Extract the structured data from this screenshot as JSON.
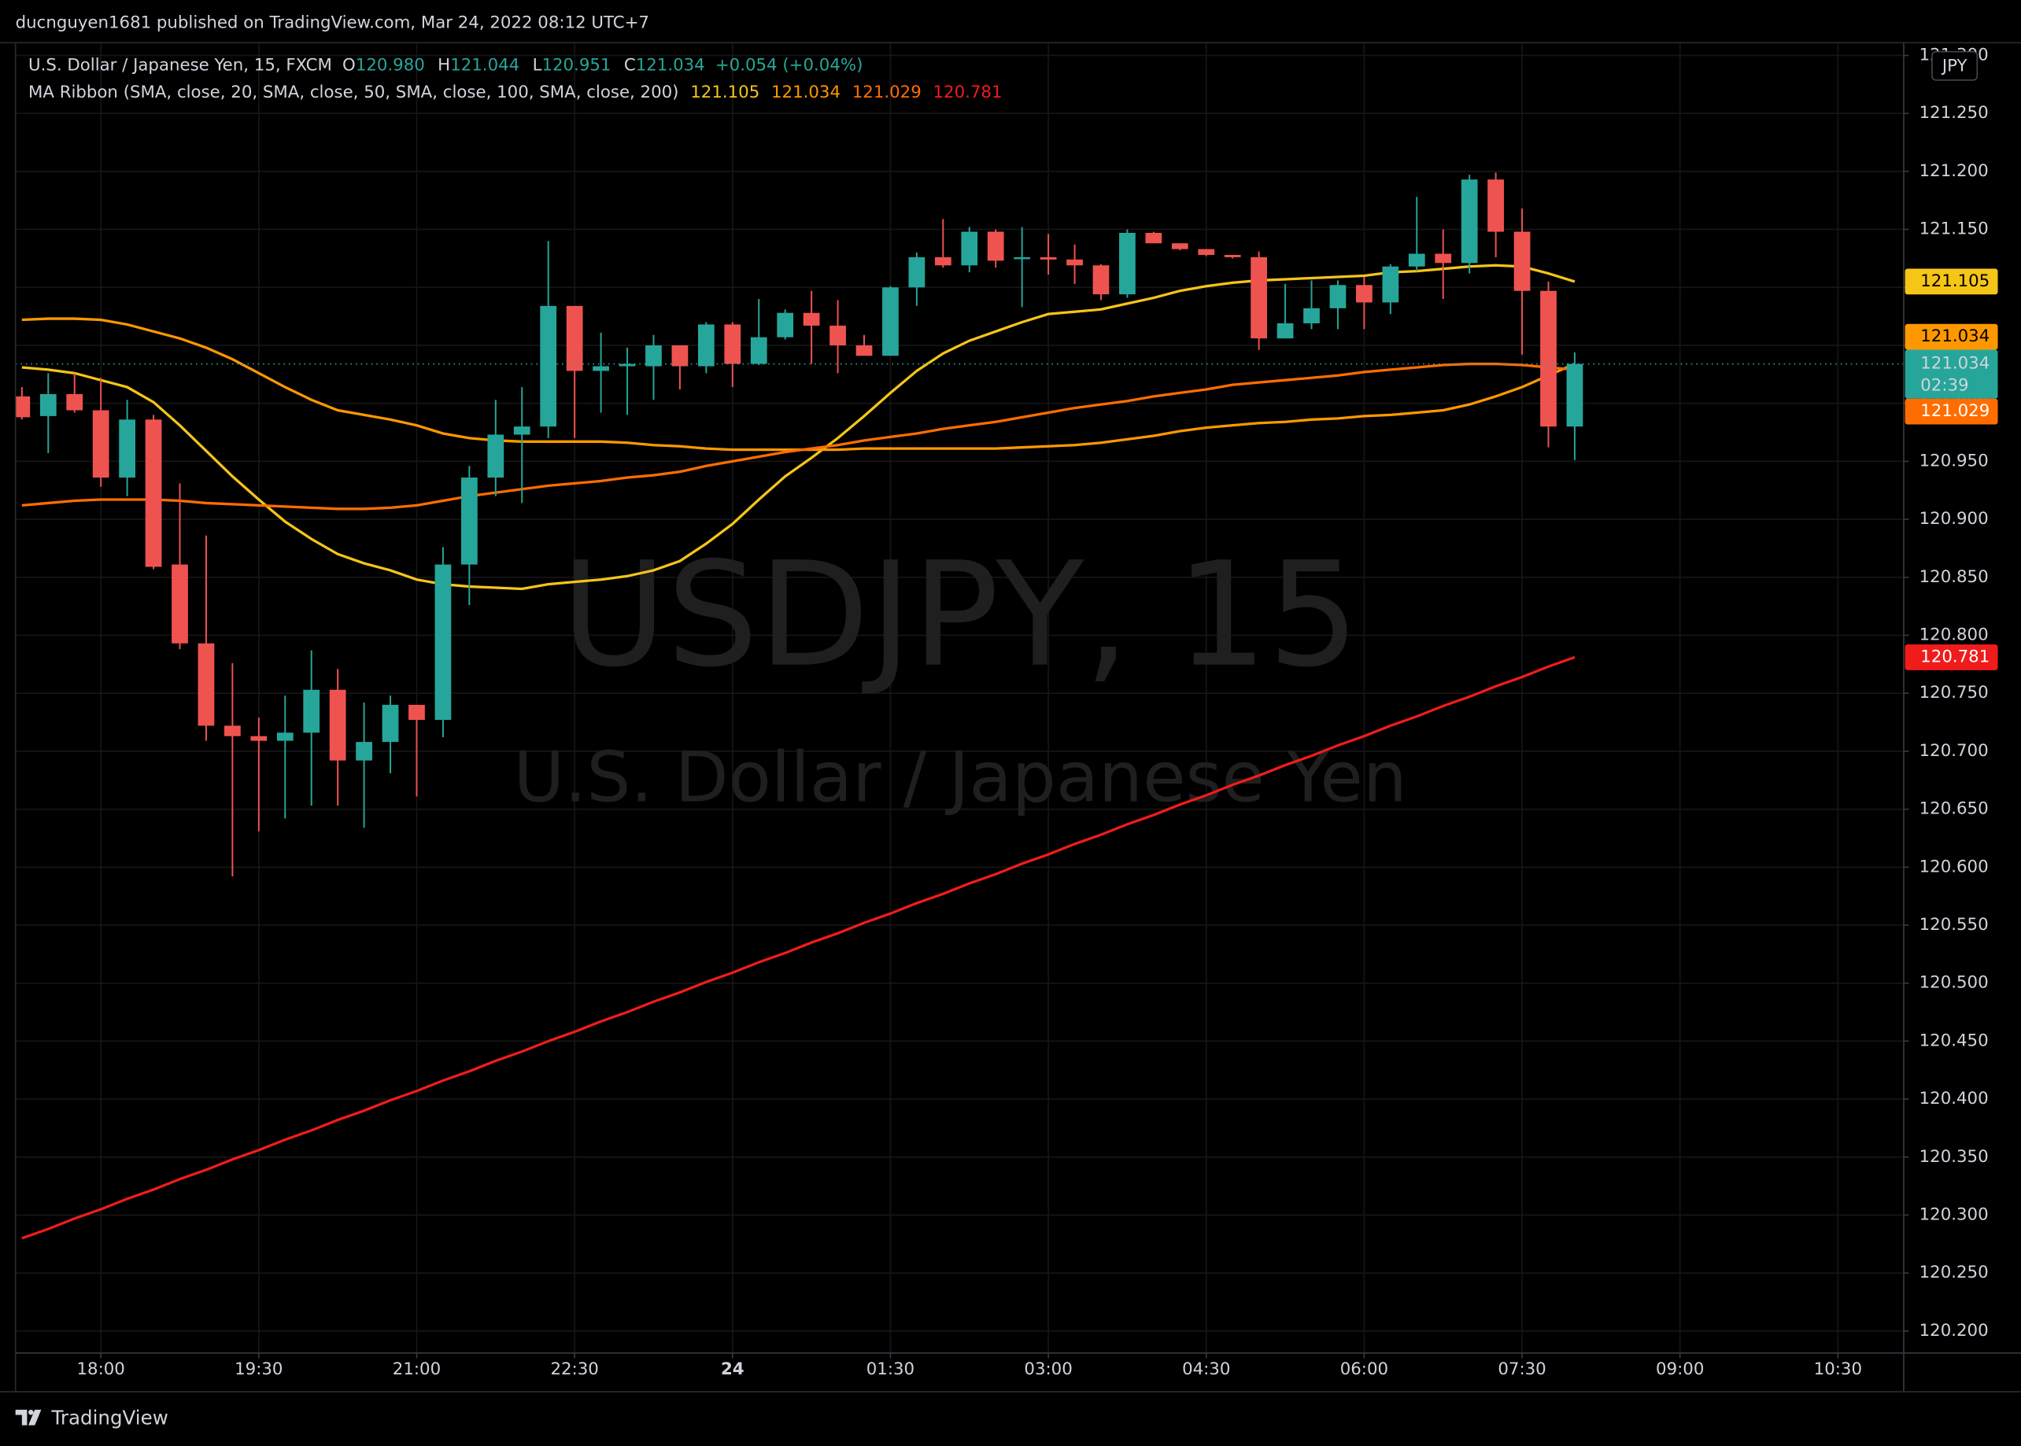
{
  "header": {
    "publisher": "ducnguyen1681 published on TradingView.com, Mar 24, 2022 08:12 UTC+7"
  },
  "footer": {
    "brand": "TradingView"
  },
  "chart_data": {
    "type": "candlestick",
    "title": "U.S. Dollar / Japanese Yen, 15, FXCM",
    "ohlc_legend": [
      {
        "key": "O",
        "value": "120.980"
      },
      {
        "key": "H",
        "value": "121.044"
      },
      {
        "key": "L",
        "value": "120.951"
      },
      {
        "key": "C",
        "value": "121.034"
      }
    ],
    "change": "+0.054 (+0.04%)",
    "indicator_title": "MA Ribbon (SMA, close, 20, SMA, close, 50, SMA, close, 100, SMA, close, 200)",
    "watermark": {
      "title": "USDJPY, 15",
      "subtitle": "U.S. Dollar / Japanese Yen"
    },
    "currency": "JPY",
    "countdown": "02:39",
    "up_color": "#26a69a",
    "down_color": "#ef5350",
    "grid": true,
    "x": [
      0,
      1,
      2,
      3,
      4,
      5,
      6,
      7,
      8,
      9,
      10,
      11,
      12,
      13,
      14,
      15,
      16,
      17,
      18,
      19,
      20,
      21,
      22,
      23,
      24,
      25,
      26,
      27,
      28,
      29,
      30,
      31,
      32,
      33,
      34,
      35,
      36,
      37,
      38,
      39,
      40,
      41,
      42,
      43,
      44,
      45,
      46,
      47,
      48,
      49,
      50,
      51,
      52,
      53,
      54,
      55,
      56,
      57,
      58,
      59
    ],
    "open": [
      121.006,
      120.989,
      121.008,
      120.994,
      120.936,
      120.986,
      120.861,
      120.793,
      120.722,
      120.713,
      120.709,
      120.716,
      120.753,
      120.692,
      120.708,
      120.74,
      120.727,
      120.861,
      120.936,
      120.973,
      120.98,
      121.084,
      121.028,
      121.032,
      121.032,
      121.05,
      121.032,
      121.068,
      121.034,
      121.057,
      121.078,
      121.067,
      121.05,
      121.041,
      121.1,
      121.126,
      121.119,
      121.148,
      121.126,
      121.126,
      121.124,
      121.119,
      121.094,
      121.147,
      121.138,
      121.133,
      121.128,
      121.126,
      121.056,
      121.069,
      121.082,
      121.102,
      121.087,
      121.118,
      121.129,
      121.121,
      121.193,
      121.148,
      121.097,
      120.98
    ],
    "high": [
      121.014,
      121.026,
      121.026,
      121.022,
      121.003,
      120.99,
      120.931,
      120.886,
      120.776,
      120.729,
      120.748,
      120.787,
      120.771,
      120.742,
      120.748,
      120.74,
      120.876,
      120.946,
      121.003,
      121.014,
      121.14,
      121.084,
      121.061,
      121.048,
      121.059,
      121.05,
      121.07,
      121.07,
      121.09,
      121.081,
      121.097,
      121.089,
      121.059,
      121.101,
      121.13,
      121.159,
      121.152,
      121.15,
      121.152,
      121.146,
      121.137,
      121.12,
      121.15,
      121.148,
      121.138,
      121.133,
      121.128,
      121.131,
      121.103,
      121.106,
      121.106,
      121.109,
      121.12,
      121.178,
      121.15,
      121.197,
      121.199,
      121.168,
      121.105,
      121.044
    ],
    "low": [
      120.986,
      120.957,
      120.992,
      120.928,
      120.92,
      120.857,
      120.788,
      120.709,
      120.592,
      120.631,
      120.642,
      120.653,
      120.653,
      120.634,
      120.681,
      120.661,
      120.712,
      120.826,
      120.92,
      120.914,
      120.97,
      120.97,
      120.992,
      120.99,
      121.003,
      121.012,
      121.026,
      121.014,
      121.033,
      121.055,
      121.034,
      121.026,
      121.041,
      121.041,
      121.084,
      121.117,
      121.113,
      121.117,
      121.083,
      121.111,
      121.103,
      121.089,
      121.091,
      121.138,
      121.132,
      121.127,
      121.125,
      121.046,
      121.056,
      121.064,
      121.064,
      121.064,
      121.077,
      121.114,
      121.09,
      121.112,
      121.126,
      121.042,
      120.962,
      120.951
    ],
    "close": [
      120.988,
      121.008,
      120.994,
      120.936,
      120.986,
      120.859,
      120.793,
      120.722,
      120.713,
      120.709,
      120.716,
      120.753,
      120.692,
      120.708,
      120.74,
      120.727,
      120.861,
      120.936,
      120.973,
      120.98,
      121.084,
      121.028,
      121.032,
      121.034,
      121.05,
      121.032,
      121.068,
      121.034,
      121.057,
      121.078,
      121.067,
      121.05,
      121.041,
      121.1,
      121.126,
      121.119,
      121.148,
      121.123,
      121.126,
      121.124,
      121.119,
      121.094,
      121.147,
      121.138,
      121.133,
      121.128,
      121.126,
      121.056,
      121.069,
      121.082,
      121.102,
      121.087,
      121.118,
      121.129,
      121.121,
      121.193,
      121.148,
      121.097,
      120.98,
      121.034
    ],
    "series": [
      {
        "color": "#f5c518",
        "values": [
          121.031,
          121.029,
          121.026,
          121.02,
          121.014,
          121.001,
          120.981,
          120.959,
          120.937,
          120.917,
          120.898,
          120.883,
          120.87,
          120.862,
          120.856,
          120.848,
          120.844,
          120.842,
          120.841,
          120.84,
          120.844,
          120.846,
          120.848,
          120.851,
          120.856,
          120.864,
          120.879,
          120.896,
          120.917,
          120.937,
          120.953,
          120.97,
          120.989,
          121.009,
          121.028,
          121.043,
          121.054,
          121.062,
          121.07,
          121.077,
          121.079,
          121.081,
          121.086,
          121.091,
          121.097,
          121.101,
          121.104,
          121.106,
          121.107,
          121.108,
          121.109,
          121.11,
          121.113,
          121.114,
          121.116,
          121.118,
          121.119,
          121.118,
          121.112,
          121.105
        ]
      },
      {
        "color": "#ff9800",
        "values": [
          121.072,
          121.073,
          121.073,
          121.072,
          121.068,
          121.062,
          121.056,
          121.048,
          121.038,
          121.026,
          121.014,
          121.003,
          120.994,
          120.99,
          120.986,
          120.981,
          120.974,
          120.97,
          120.968,
          120.967,
          120.967,
          120.967,
          120.967,
          120.966,
          120.964,
          120.963,
          120.961,
          120.96,
          120.96,
          120.96,
          120.96,
          120.96,
          120.961,
          120.961,
          120.961,
          120.961,
          120.961,
          120.961,
          120.962,
          120.963,
          120.964,
          120.966,
          120.969,
          120.972,
          120.976,
          120.979,
          120.981,
          120.983,
          120.984,
          120.986,
          120.987,
          120.989,
          120.99,
          120.992,
          120.994,
          120.999,
          121.006,
          121.014,
          121.024,
          121.034
        ]
      },
      {
        "color": "#ff6d00",
        "values": [
          120.912,
          120.914,
          120.916,
          120.917,
          120.917,
          120.917,
          120.916,
          120.914,
          120.913,
          120.912,
          120.911,
          120.91,
          120.909,
          120.909,
          120.91,
          120.912,
          120.916,
          120.92,
          120.923,
          120.926,
          120.929,
          120.931,
          120.933,
          120.936,
          120.938,
          120.941,
          120.946,
          120.95,
          120.954,
          120.958,
          120.961,
          120.964,
          120.968,
          120.971,
          120.974,
          120.978,
          120.981,
          120.984,
          120.988,
          120.992,
          120.996,
          120.999,
          121.002,
          121.006,
          121.009,
          121.012,
          121.016,
          121.018,
          121.02,
          121.022,
          121.024,
          121.027,
          121.029,
          121.031,
          121.033,
          121.034,
          121.034,
          121.033,
          121.031,
          121.029
        ]
      },
      {
        "color": "#f01c1c",
        "values": [
          120.28,
          120.288,
          120.297,
          120.305,
          120.314,
          120.322,
          120.331,
          120.339,
          120.348,
          120.356,
          120.365,
          120.373,
          120.382,
          120.39,
          120.399,
          120.407,
          120.416,
          120.424,
          120.433,
          120.441,
          120.45,
          120.458,
          120.467,
          120.475,
          120.484,
          120.492,
          120.501,
          120.509,
          120.518,
          120.526,
          120.535,
          120.543,
          120.552,
          120.56,
          120.569,
          120.577,
          120.586,
          120.594,
          120.603,
          120.611,
          120.62,
          120.628,
          120.637,
          120.645,
          120.654,
          120.662,
          120.671,
          120.679,
          120.688,
          120.696,
          120.705,
          120.713,
          120.722,
          120.73,
          120.739,
          120.747,
          120.756,
          120.764,
          120.773,
          120.781
        ]
      }
    ],
    "xlim": [
      -0.245,
      71.5
    ],
    "xticks": [
      {
        "value": 3,
        "label": "18:00"
      },
      {
        "value": 9,
        "label": "19:30"
      },
      {
        "value": 15,
        "label": "21:00"
      },
      {
        "value": 21,
        "label": "22:30"
      },
      {
        "value": 27,
        "label": "24"
      },
      {
        "value": 33,
        "label": "01:30"
      },
      {
        "value": 39,
        "label": "03:00"
      },
      {
        "value": 45,
        "label": "04:30"
      },
      {
        "value": 51,
        "label": "06:00"
      },
      {
        "value": 57,
        "label": "07:30"
      },
      {
        "value": 63,
        "label": "09:00"
      },
      {
        "value": 69,
        "label": "10:30"
      }
    ],
    "ylim": [
      120.181,
      121.311
    ],
    "yticks": [
      {
        "value": 120.2,
        "label": "120.200"
      },
      {
        "value": 120.25,
        "label": "120.250"
      },
      {
        "value": 120.3,
        "label": "120.300"
      },
      {
        "value": 120.35,
        "label": "120.350"
      },
      {
        "value": 120.4,
        "label": "120.400"
      },
      {
        "value": 120.45,
        "label": "120.450"
      },
      {
        "value": 120.5,
        "label": "120.500"
      },
      {
        "value": 120.55,
        "label": "120.550"
      },
      {
        "value": 120.6,
        "label": "120.600"
      },
      {
        "value": 120.65,
        "label": "120.650"
      },
      {
        "value": 120.7,
        "label": "120.700"
      },
      {
        "value": 120.75,
        "label": "120.750"
      },
      {
        "value": 120.8,
        "label": "120.800"
      },
      {
        "value": 120.85,
        "label": "120.850"
      },
      {
        "value": 120.9,
        "label": "120.900"
      },
      {
        "value": 120.95,
        "label": "120.950"
      },
      {
        "value": 121.0,
        "label": "121.000"
      },
      {
        "value": 121.05,
        "label": "121.050"
      },
      {
        "value": 121.1,
        "label": "121.100"
      },
      {
        "value": 121.15,
        "label": "121.150"
      },
      {
        "value": 121.2,
        "label": "121.200"
      },
      {
        "value": 121.25,
        "label": "121.250"
      },
      {
        "value": 121.3,
        "label": "121.300"
      }
    ]
  }
}
